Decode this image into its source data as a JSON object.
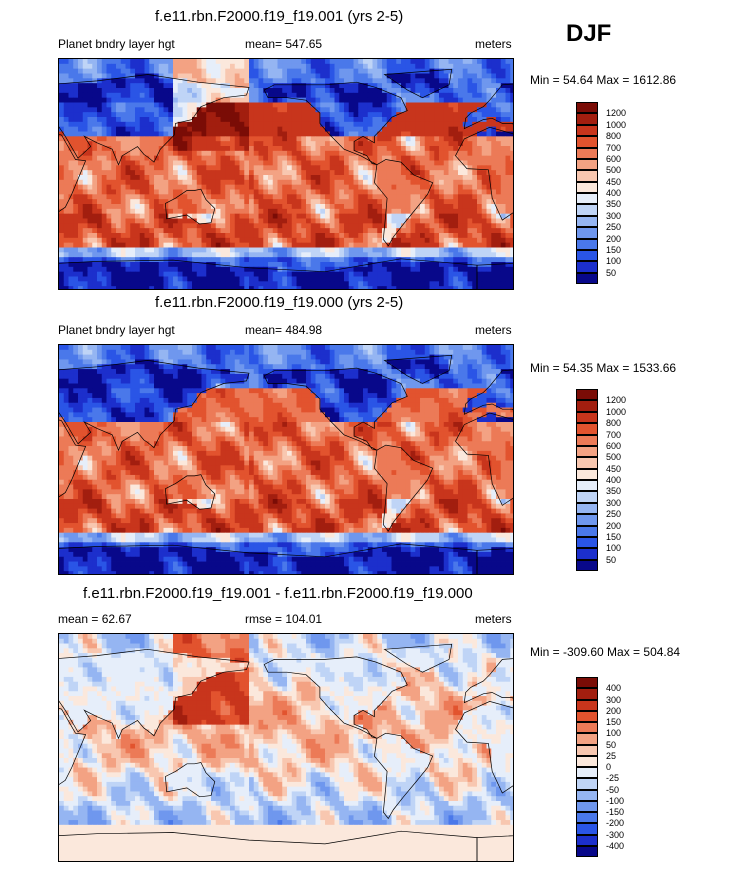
{
  "season": "DJF",
  "chart_data": [
    {
      "type": "heatmap",
      "title": "f.e11.rbn.F2000.f19_f19.001 (yrs 2-5)",
      "left_label": "Planet bndry layer hgt",
      "center_label": "mean= 547.65",
      "right_label": "meters",
      "minmax_label": "Min =  54.64 Max = 1612.86",
      "min": 54.64,
      "max": 1612.86,
      "levels": [
        "50",
        "100",
        "150",
        "200",
        "250",
        "300",
        "350",
        "400",
        "450",
        "500",
        "600",
        "700",
        "800",
        "1000",
        "1200"
      ],
      "colors": [
        "#08088a",
        "#1c2fcc",
        "#2a55e6",
        "#4a78ea",
        "#6f97ee",
        "#95b5f2",
        "#bfd4f6",
        "#e6eefa",
        "#fbe8dc",
        "#f8c7b0",
        "#f3a283",
        "#ec7a57",
        "#e2532e",
        "#c8351c",
        "#a21e0f",
        "#7a0c06"
      ]
    },
    {
      "type": "heatmap",
      "title": "f.e11.rbn.F2000.f19_f19.000 (yrs 2-5)",
      "left_label": "Planet bndry layer hgt",
      "center_label": "mean= 484.98",
      "right_label": "meters",
      "minmax_label": "Min =  54.35 Max = 1533.66",
      "min": 54.35,
      "max": 1533.66,
      "levels": [
        "50",
        "100",
        "150",
        "200",
        "250",
        "300",
        "350",
        "400",
        "450",
        "500",
        "600",
        "700",
        "800",
        "1000",
        "1200"
      ],
      "colors": [
        "#08088a",
        "#1c2fcc",
        "#2a55e6",
        "#4a78ea",
        "#6f97ee",
        "#95b5f2",
        "#bfd4f6",
        "#e6eefa",
        "#fbe8dc",
        "#f8c7b0",
        "#f3a283",
        "#ec7a57",
        "#e2532e",
        "#c8351c",
        "#a21e0f",
        "#7a0c06"
      ]
    },
    {
      "type": "heatmap",
      "title": "f.e11.rbn.F2000.f19_f19.001 - f.e11.rbn.F2000.f19_f19.000",
      "left_label": "mean =  62.67",
      "center_label": "rmse = 104.01",
      "right_label": "meters",
      "minmax_label": "Min = -309.60 Max = 504.84",
      "min": -309.6,
      "max": 504.84,
      "levels": [
        "-400",
        "-300",
        "-200",
        "-150",
        "-100",
        "-50",
        "-25",
        "0",
        "25",
        "50",
        "100",
        "150",
        "200",
        "300",
        "400"
      ],
      "colors": [
        "#08088a",
        "#1c2fcc",
        "#2a55e6",
        "#4a78ea",
        "#6f97ee",
        "#95b5f2",
        "#bfd4f6",
        "#e6eefa",
        "#fbe8dc",
        "#f8c7b0",
        "#f3a283",
        "#ec7a57",
        "#e2532e",
        "#c8351c",
        "#a21e0f",
        "#7a0c06"
      ]
    }
  ]
}
